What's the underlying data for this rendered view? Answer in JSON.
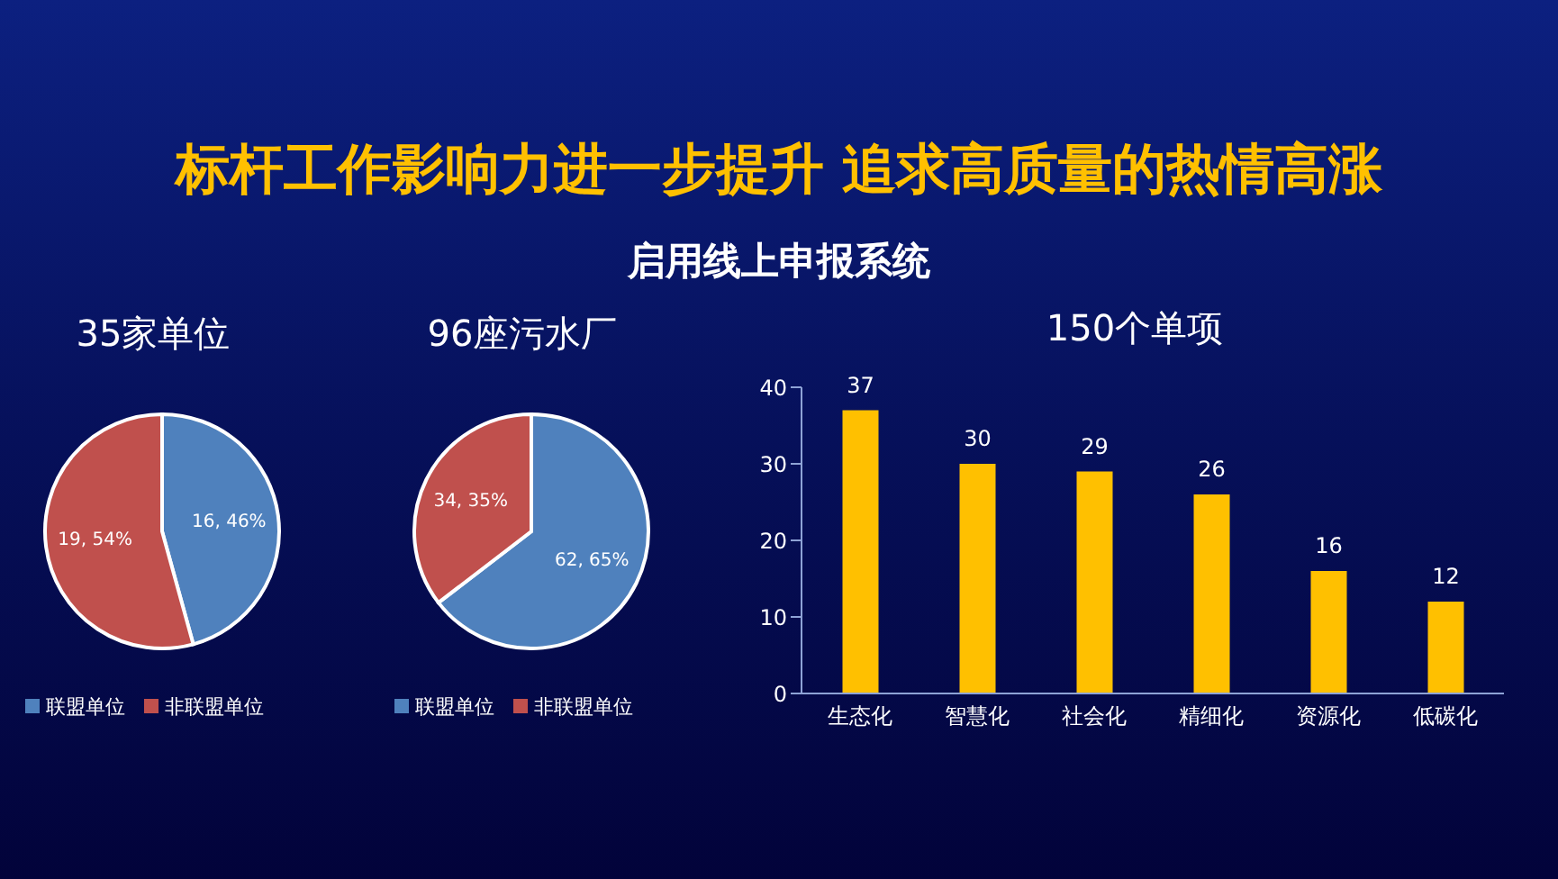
{
  "chart_data": [
    {
      "type": "other",
      "title": "标杆工作影响力进一步提升  追求高质量的热情高涨",
      "subtitle": "启用线上申报系统"
    },
    {
      "type": "pie",
      "title": "35家单位",
      "categories": [
        "联盟单位",
        "非联盟单位"
      ],
      "values": [
        16,
        19
      ],
      "colors": [
        "#4f81bd",
        "#c0504d"
      ],
      "value_labels": [
        "16, 46%",
        "19, 54%"
      ],
      "legend": "bottom"
    },
    {
      "type": "pie",
      "title": "96座污水厂",
      "categories": [
        "联盟单位",
        "非联盟单位"
      ],
      "values": [
        62,
        34
      ],
      "colors": [
        "#4f81bd",
        "#c0504d"
      ],
      "value_labels": [
        "62, 65%",
        "34, 35%"
      ],
      "legend": "bottom"
    },
    {
      "type": "bar",
      "title": "150个单项",
      "categories": [
        "生态化",
        "智慧化",
        "社会化",
        "精细化",
        "资源化",
        "低碳化"
      ],
      "values": [
        37,
        30,
        29,
        26,
        16,
        12
      ],
      "color": "#ffc000",
      "data_labels": true,
      "ylim": [
        0,
        40
      ],
      "yticks": [
        0,
        10,
        20,
        30,
        40
      ],
      "grid": false,
      "legend": false
    }
  ]
}
